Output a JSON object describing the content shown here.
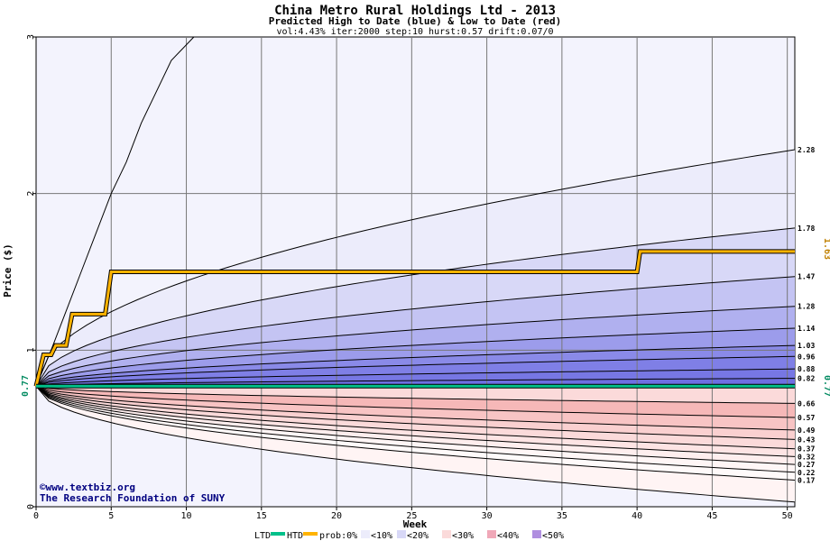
{
  "chart_data": {
    "type": "area",
    "title": "China Metro Rural Holdings Ltd - 2013",
    "subtitle": "Predicted High to Date (blue) &  Low to Date (red)",
    "params": "vol:4.43% iter:2000 step:10 hurst:0.57 drift:0.07/0",
    "xlabel": "Week",
    "ylabel": "Price ($)",
    "xlim": [
      0,
      50.5
    ],
    "ylim": [
      0,
      3
    ],
    "x_ticks": [
      0,
      5,
      10,
      15,
      20,
      25,
      30,
      35,
      40,
      45,
      50
    ],
    "y_ticks": [
      0,
      1,
      2,
      3
    ],
    "grid": true,
    "start_price": 0.77,
    "start_price_label": "0.77",
    "htd_current_label": "1.63",
    "high_bands": {
      "description": "Predicted High to Date percentile curves",
      "end_values": [
        2.28,
        1.78,
        1.47,
        1.28,
        1.14,
        1.03,
        0.96,
        0.88,
        0.82
      ],
      "end_labels": [
        "2.28",
        "1.78",
        "1.47",
        "1.28",
        "1.14",
        "1.03",
        "0.96",
        "0.88",
        "0.82"
      ],
      "fills": [
        "#ececfb",
        "#d8d8f7",
        "#c4c4f3",
        "#b0b0ef",
        "#9c9ceb",
        "#8a8ae8",
        "#7f7fe6",
        "#7777e4",
        "#6e6ee2"
      ]
    },
    "low_bands": {
      "description": "Predicted Low to Date percentile curves",
      "end_values": [
        0.66,
        0.57,
        0.49,
        0.43,
        0.37,
        0.32,
        0.27,
        0.22,
        0.17
      ],
      "end_labels": [
        "0.66",
        "0.57",
        "0.49",
        "0.43",
        "0.37",
        "0.32",
        "0.27",
        "0.22",
        "0.17"
      ],
      "fills": [
        "#f6b8b8",
        "#f8c4c4",
        "#fad0d0",
        "#fbdada",
        "#fde4e4",
        "#feeeee",
        "#fff6f6",
        "#fffafa"
      ]
    },
    "outer_high_curve": {
      "x": [
        0,
        1,
        2,
        3,
        4,
        5,
        6,
        7,
        8,
        9,
        10.5
      ],
      "y": [
        0.77,
        1.0,
        1.25,
        1.5,
        1.75,
        2.0,
        2.2,
        2.45,
        2.65,
        2.85,
        3.0
      ]
    },
    "outer_low_end": 0.03,
    "series": [
      {
        "name": "HTD",
        "color": "#ffb300",
        "x": [
          0,
          0.5,
          1.0,
          1.3,
          2.0,
          2.4,
          4.6,
          5.0,
          40.0,
          40.2,
          50.5
        ],
        "y": [
          0.77,
          0.97,
          0.97,
          1.03,
          1.03,
          1.23,
          1.23,
          1.5,
          1.5,
          1.63,
          1.63
        ]
      },
      {
        "name": "LTD",
        "color": "#00c08a",
        "x": [
          0,
          50.5
        ],
        "y": [
          0.77,
          0.77
        ]
      }
    ]
  },
  "credits": {
    "site": "©www.textbiz.org",
    "org": "The Research Foundation of SUNY"
  },
  "legend": {
    "ltd": "LTD",
    "htd": "HTD",
    "prob_prefix": "prob:0%",
    "items": [
      "<10%",
      "<20%",
      "<30%",
      "<40%",
      "<50%"
    ],
    "colors": [
      "#ffffff",
      "#ececfb",
      "#fbdada",
      "#f8c4c4",
      "#f6b8b8",
      "#7777e4"
    ]
  }
}
